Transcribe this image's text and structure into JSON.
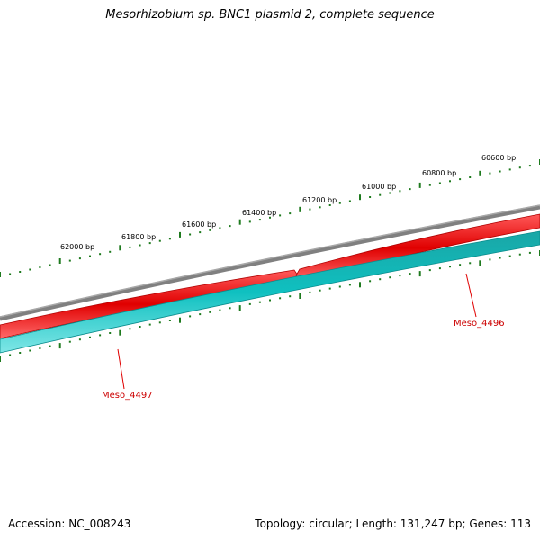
{
  "title": "Mesorhizobium sp. BNC1 plasmid 2, complete sequence",
  "accession": "Accession: NC_008243",
  "summary": "Topology: circular; Length: 131,247 bp; Genes: 113",
  "ruler_labels": [
    "62000 bp",
    "61800 bp",
    "61600 bp",
    "61400 bp",
    "61200 bp",
    "61000 bp",
    "60800 bp",
    "60600 bp"
  ],
  "genes": [
    {
      "name": "Meso_4496",
      "strand": "forward-red",
      "color": "#e00000"
    },
    {
      "name": "Meso_4497",
      "strand": "reverse-cyan",
      "color": "#00b4b4"
    }
  ],
  "colors": {
    "backbone": "#808080",
    "forward_track": "#ee0000",
    "reverse_track": "#1ec8c8",
    "tick": "#1e7a1e",
    "gene_label": "#cc0000"
  }
}
